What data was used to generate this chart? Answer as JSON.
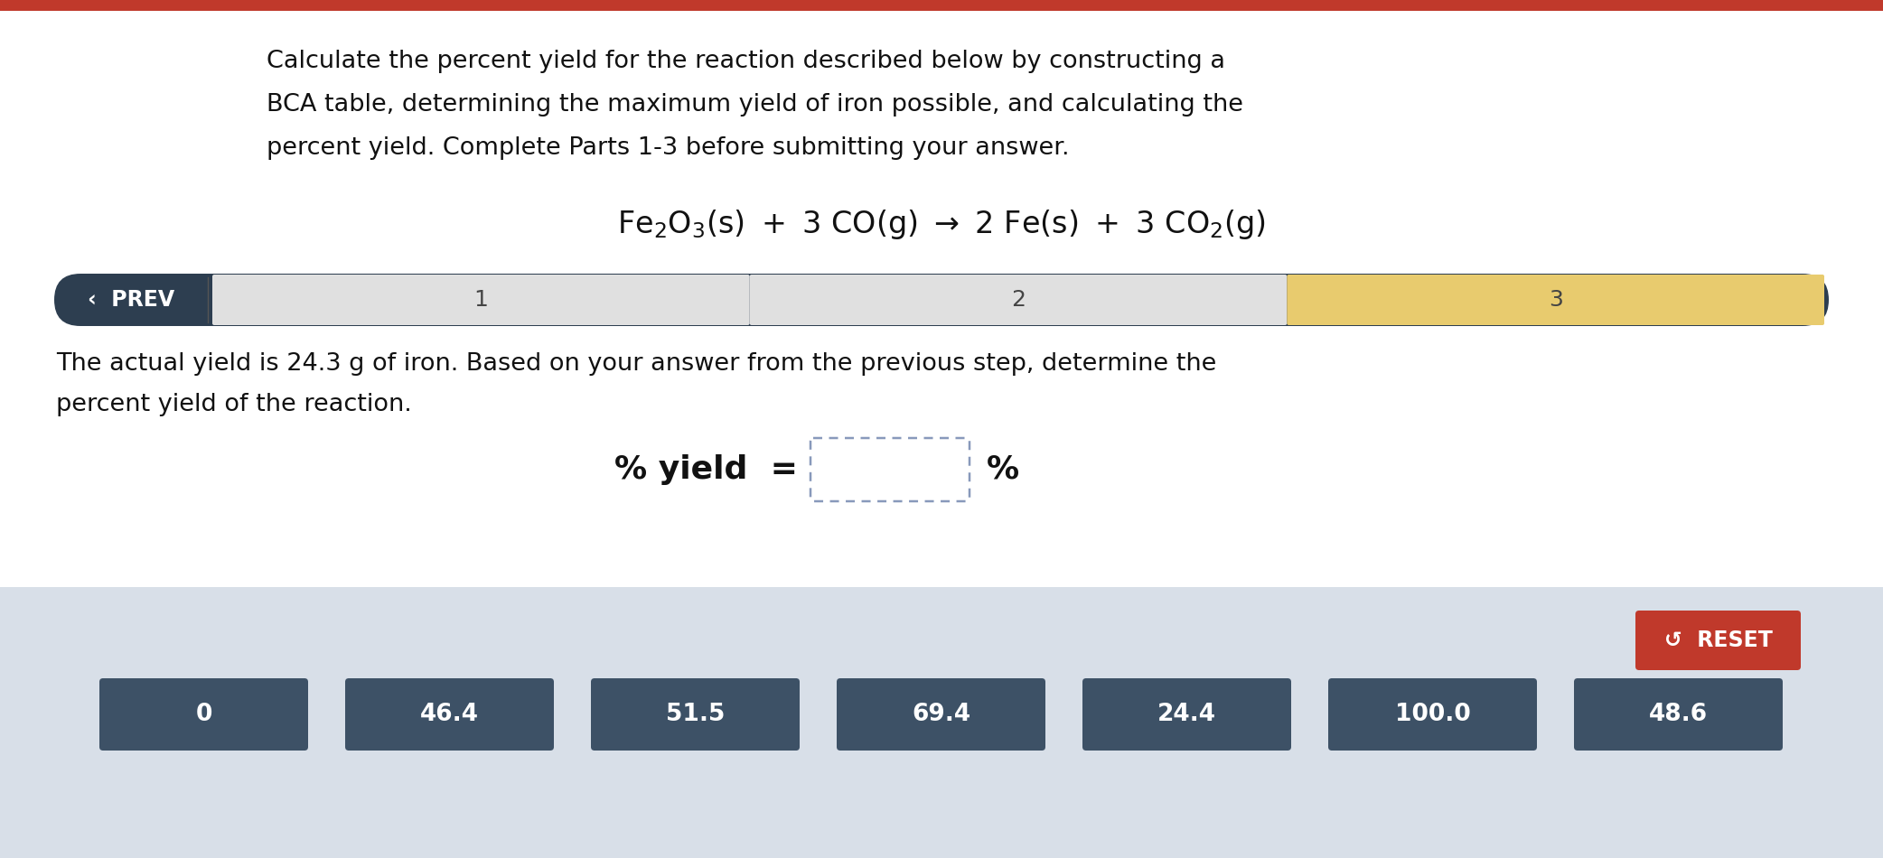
{
  "title_line1": "Calculate the percent yield for the reaction described below by constructing a",
  "title_line2": "BCA table, determining the maximum yield of iron possible, and calculating the",
  "title_line3": "percent yield. Complete Parts 1-3 before submitting your answer.",
  "nav_prev": "‹  PREV",
  "nav_steps": [
    "1",
    "2",
    "3"
  ],
  "description_line1": "The actual yield is 24.3 g of iron. Based on your answer from the previous step, determine the",
  "description_line2": "percent yield of the reaction.",
  "yield_label": "% yield  =",
  "yield_unit": "%",
  "reset_label": "↺  RESET",
  "button_values": [
    "0",
    "46.4",
    "51.5",
    "69.4",
    "24.4",
    "100.0",
    "48.6"
  ],
  "top_bar_color": "#c0392b",
  "nav_bar_color": "#2d3e50",
  "nav_step1_color": "#e0e0e0",
  "nav_step2_color": "#e0e0e0",
  "nav_step3_color": "#e8cb6e",
  "nav_text_color": "#444444",
  "button_color": "#3d5166",
  "button_text_color": "#ffffff",
  "reset_button_color": "#c0392b",
  "bottom_panel_color": "#d8dfe8",
  "background_color": "#ffffff",
  "text_color": "#111111",
  "input_box_color": "#ffffff",
  "input_box_border": "#8899bb"
}
